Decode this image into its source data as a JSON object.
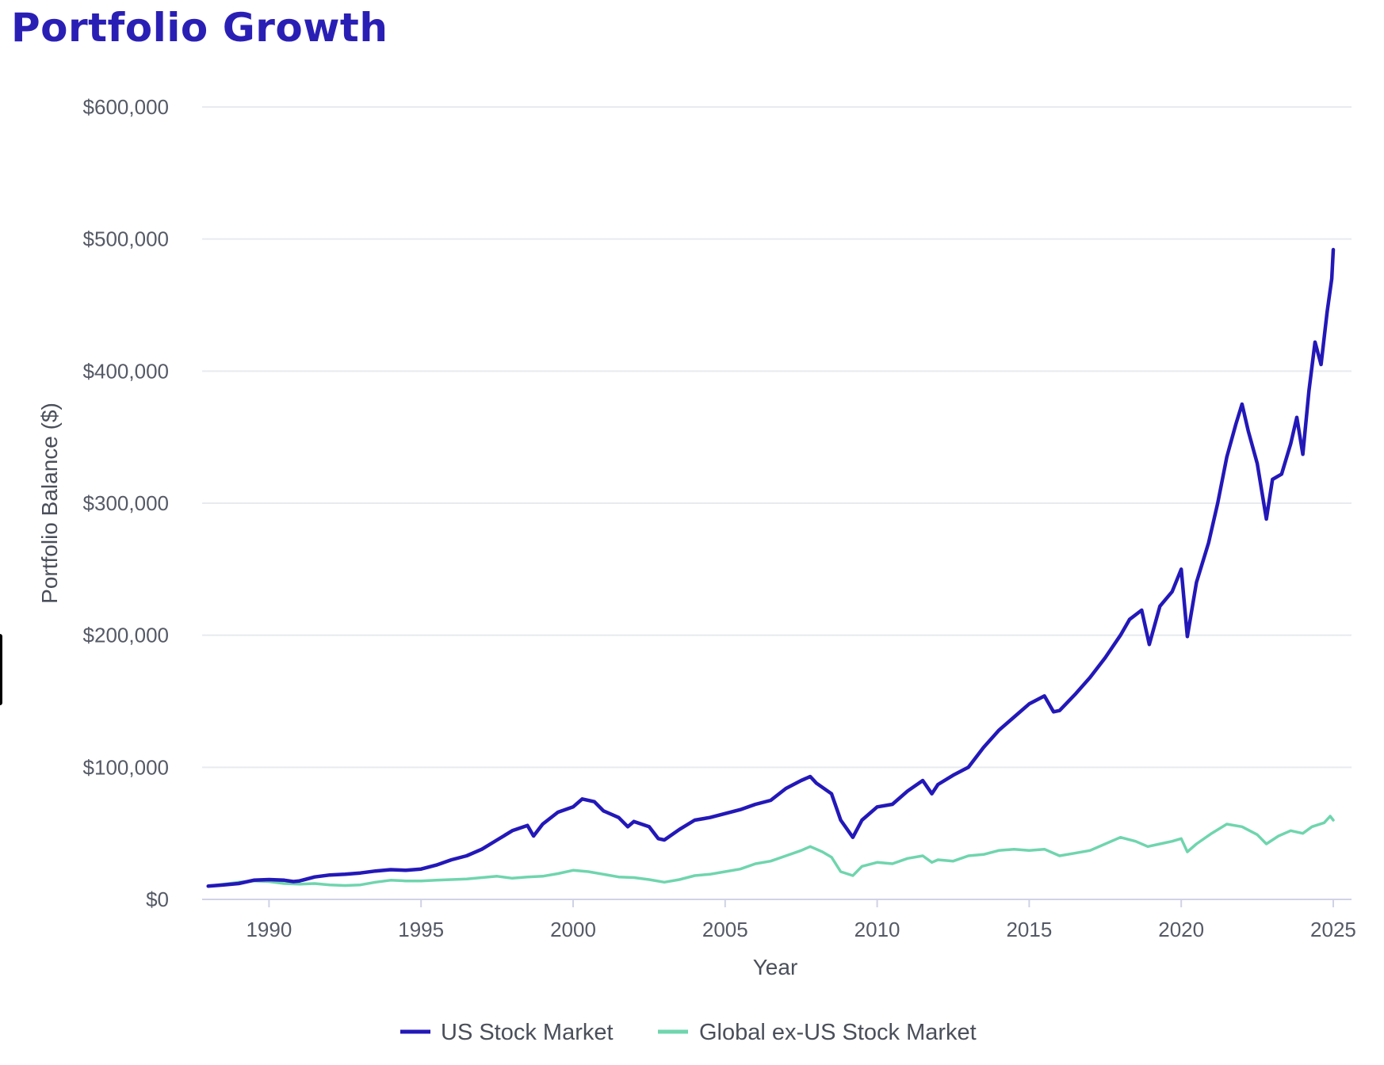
{
  "chart_data": {
    "type": "line",
    "title": "Portfolio Growth",
    "xlabel": "Year",
    "ylabel": "Portfolio Balance ($)",
    "xlim": [
      1987.8,
      2025.6
    ],
    "ylim": [
      0,
      600000
    ],
    "x_ticks": [
      {
        "value": 1990,
        "label": "1990"
      },
      {
        "value": 1995,
        "label": "1995"
      },
      {
        "value": 2000,
        "label": "2000"
      },
      {
        "value": 2005,
        "label": "2005"
      },
      {
        "value": 2010,
        "label": "2010"
      },
      {
        "value": 2015,
        "label": "2015"
      },
      {
        "value": 2020,
        "label": "2020"
      },
      {
        "value": 2025,
        "label": "2025"
      }
    ],
    "y_ticks": [
      {
        "value": 0,
        "label": "$0"
      },
      {
        "value": 100000,
        "label": "$100,000"
      },
      {
        "value": 200000,
        "label": "$200,000"
      },
      {
        "value": 300000,
        "label": "$300,000"
      },
      {
        "value": 400000,
        "label": "$400,000"
      },
      {
        "value": 500000,
        "label": "$500,000"
      },
      {
        "value": 600000,
        "label": "$600,000"
      }
    ],
    "grid": true,
    "legend_position": "bottom-center",
    "series": [
      {
        "name": "US Stock Market",
        "color": "#2318b8",
        "points": [
          [
            1988.0,
            10000
          ],
          [
            1988.5,
            11000
          ],
          [
            1989.0,
            12000
          ],
          [
            1989.5,
            14500
          ],
          [
            1990.0,
            15000
          ],
          [
            1990.5,
            14500
          ],
          [
            1990.8,
            13500
          ],
          [
            1991.0,
            14000
          ],
          [
            1991.5,
            17000
          ],
          [
            1992.0,
            18500
          ],
          [
            1992.5,
            19000
          ],
          [
            1993.0,
            20000
          ],
          [
            1993.5,
            21500
          ],
          [
            1994.0,
            22500
          ],
          [
            1994.5,
            22000
          ],
          [
            1995.0,
            23000
          ],
          [
            1995.5,
            26000
          ],
          [
            1996.0,
            30000
          ],
          [
            1996.5,
            33000
          ],
          [
            1997.0,
            38000
          ],
          [
            1997.5,
            45000
          ],
          [
            1998.0,
            52000
          ],
          [
            1998.5,
            56000
          ],
          [
            1998.7,
            48000
          ],
          [
            1999.0,
            57000
          ],
          [
            1999.5,
            66000
          ],
          [
            2000.0,
            70000
          ],
          [
            2000.3,
            76000
          ],
          [
            2000.7,
            74000
          ],
          [
            2001.0,
            67000
          ],
          [
            2001.5,
            62000
          ],
          [
            2001.8,
            55000
          ],
          [
            2002.0,
            59000
          ],
          [
            2002.5,
            55000
          ],
          [
            2002.8,
            46000
          ],
          [
            2003.0,
            45000
          ],
          [
            2003.5,
            53000
          ],
          [
            2004.0,
            60000
          ],
          [
            2004.5,
            62000
          ],
          [
            2005.0,
            65000
          ],
          [
            2005.5,
            68000
          ],
          [
            2006.0,
            72000
          ],
          [
            2006.5,
            75000
          ],
          [
            2007.0,
            84000
          ],
          [
            2007.5,
            90000
          ],
          [
            2007.8,
            93000
          ],
          [
            2008.0,
            88000
          ],
          [
            2008.5,
            80000
          ],
          [
            2008.8,
            60000
          ],
          [
            2009.2,
            47000
          ],
          [
            2009.5,
            60000
          ],
          [
            2010.0,
            70000
          ],
          [
            2010.5,
            72000
          ],
          [
            2011.0,
            82000
          ],
          [
            2011.5,
            90000
          ],
          [
            2011.8,
            80000
          ],
          [
            2012.0,
            87000
          ],
          [
            2012.5,
            94000
          ],
          [
            2013.0,
            100000
          ],
          [
            2013.5,
            115000
          ],
          [
            2014.0,
            128000
          ],
          [
            2014.5,
            138000
          ],
          [
            2015.0,
            148000
          ],
          [
            2015.5,
            154000
          ],
          [
            2015.8,
            142000
          ],
          [
            2016.0,
            143000
          ],
          [
            2016.5,
            155000
          ],
          [
            2017.0,
            168000
          ],
          [
            2017.5,
            183000
          ],
          [
            2018.0,
            200000
          ],
          [
            2018.3,
            212000
          ],
          [
            2018.7,
            219000
          ],
          [
            2018.95,
            193000
          ],
          [
            2019.3,
            222000
          ],
          [
            2019.7,
            233000
          ],
          [
            2020.0,
            250000
          ],
          [
            2020.2,
            199000
          ],
          [
            2020.5,
            240000
          ],
          [
            2020.9,
            270000
          ],
          [
            2021.2,
            300000
          ],
          [
            2021.5,
            335000
          ],
          [
            2021.8,
            360000
          ],
          [
            2022.0,
            375000
          ],
          [
            2022.2,
            355000
          ],
          [
            2022.5,
            330000
          ],
          [
            2022.8,
            288000
          ],
          [
            2023.0,
            318000
          ],
          [
            2023.3,
            322000
          ],
          [
            2023.6,
            345000
          ],
          [
            2023.8,
            365000
          ],
          [
            2024.0,
            337000
          ],
          [
            2024.2,
            385000
          ],
          [
            2024.4,
            422000
          ],
          [
            2024.6,
            405000
          ],
          [
            2024.8,
            445000
          ],
          [
            2024.95,
            470000
          ],
          [
            2025.0,
            492000
          ]
        ]
      },
      {
        "name": "Global ex-US Stock Market",
        "color": "#6fd5ae",
        "points": [
          [
            1988.0,
            10000
          ],
          [
            1988.5,
            11500
          ],
          [
            1989.0,
            13000
          ],
          [
            1989.5,
            14000
          ],
          [
            1990.0,
            13500
          ],
          [
            1990.5,
            12000
          ],
          [
            1991.0,
            11500
          ],
          [
            1991.5,
            12000
          ],
          [
            1992.0,
            11000
          ],
          [
            1992.5,
            10500
          ],
          [
            1993.0,
            11000
          ],
          [
            1993.5,
            13000
          ],
          [
            1994.0,
            14500
          ],
          [
            1994.5,
            14000
          ],
          [
            1995.0,
            14000
          ],
          [
            1995.5,
            14500
          ],
          [
            1996.0,
            15000
          ],
          [
            1996.5,
            15500
          ],
          [
            1997.0,
            16500
          ],
          [
            1997.5,
            17500
          ],
          [
            1998.0,
            16000
          ],
          [
            1998.5,
            17000
          ],
          [
            1999.0,
            17500
          ],
          [
            1999.5,
            19500
          ],
          [
            2000.0,
            22000
          ],
          [
            2000.5,
            21000
          ],
          [
            2001.0,
            19000
          ],
          [
            2001.5,
            17000
          ],
          [
            2002.0,
            16500
          ],
          [
            2002.5,
            15000
          ],
          [
            2003.0,
            13000
          ],
          [
            2003.5,
            15000
          ],
          [
            2004.0,
            18000
          ],
          [
            2004.5,
            19000
          ],
          [
            2005.0,
            21000
          ],
          [
            2005.5,
            23000
          ],
          [
            2006.0,
            27000
          ],
          [
            2006.5,
            29000
          ],
          [
            2007.0,
            33000
          ],
          [
            2007.5,
            37000
          ],
          [
            2007.8,
            40000
          ],
          [
            2008.2,
            36000
          ],
          [
            2008.5,
            32000
          ],
          [
            2008.8,
            21000
          ],
          [
            2009.2,
            18000
          ],
          [
            2009.5,
            25000
          ],
          [
            2010.0,
            28000
          ],
          [
            2010.5,
            27000
          ],
          [
            2011.0,
            31000
          ],
          [
            2011.5,
            33000
          ],
          [
            2011.8,
            28000
          ],
          [
            2012.0,
            30000
          ],
          [
            2012.5,
            29000
          ],
          [
            2013.0,
            33000
          ],
          [
            2013.5,
            34000
          ],
          [
            2014.0,
            37000
          ],
          [
            2014.5,
            38000
          ],
          [
            2015.0,
            37000
          ],
          [
            2015.5,
            38000
          ],
          [
            2016.0,
            33000
          ],
          [
            2016.5,
            35000
          ],
          [
            2017.0,
            37000
          ],
          [
            2017.5,
            42000
          ],
          [
            2018.0,
            47000
          ],
          [
            2018.5,
            44000
          ],
          [
            2018.9,
            40000
          ],
          [
            2019.3,
            42000
          ],
          [
            2019.7,
            44000
          ],
          [
            2020.0,
            46000
          ],
          [
            2020.2,
            36000
          ],
          [
            2020.5,
            42000
          ],
          [
            2021.0,
            50000
          ],
          [
            2021.5,
            57000
          ],
          [
            2022.0,
            55000
          ],
          [
            2022.5,
            49000
          ],
          [
            2022.8,
            42000
          ],
          [
            2023.2,
            48000
          ],
          [
            2023.6,
            52000
          ],
          [
            2024.0,
            50000
          ],
          [
            2024.3,
            55000
          ],
          [
            2024.7,
            58000
          ],
          [
            2024.9,
            63000
          ],
          [
            2025.0,
            60000
          ]
        ]
      }
    ]
  }
}
